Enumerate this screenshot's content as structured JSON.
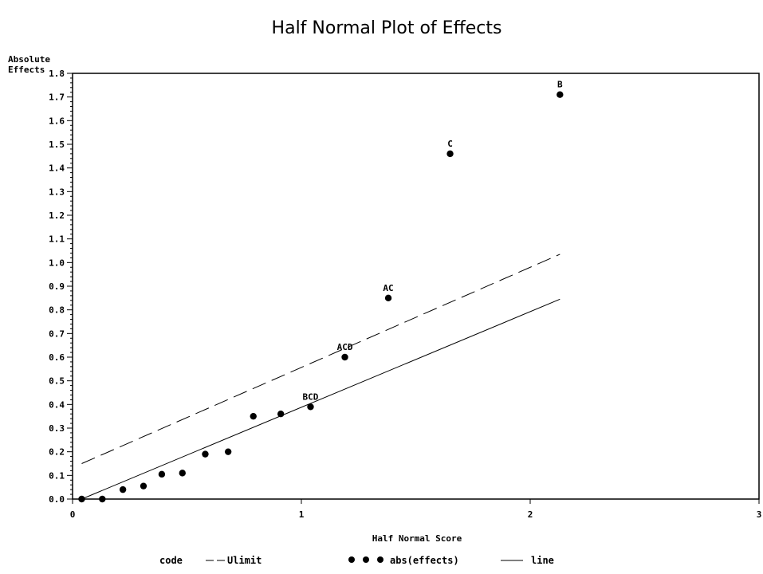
{
  "chart_data": {
    "type": "scatter",
    "title": "Half Normal Plot of Effects",
    "xlabel": "Half Normal Score",
    "ylabel_line1": "Absolute",
    "ylabel_line2": "Effects",
    "xlim": [
      0,
      3
    ],
    "ylim": [
      0,
      1.8
    ],
    "x_ticks": [
      {
        "value": 0,
        "label": "0"
      },
      {
        "value": 1,
        "label": "1"
      },
      {
        "value": 2,
        "label": "2"
      },
      {
        "value": 3,
        "label": "3"
      }
    ],
    "y_ticks": [
      {
        "value": 0.0,
        "label": "0.0"
      },
      {
        "value": 0.1,
        "label": "0.1"
      },
      {
        "value": 0.2,
        "label": "0.2"
      },
      {
        "value": 0.3,
        "label": "0.3"
      },
      {
        "value": 0.4,
        "label": "0.4"
      },
      {
        "value": 0.5,
        "label": "0.5"
      },
      {
        "value": 0.6,
        "label": "0.6"
      },
      {
        "value": 0.7,
        "label": "0.7"
      },
      {
        "value": 0.8,
        "label": "0.8"
      },
      {
        "value": 0.9,
        "label": "0.9"
      },
      {
        "value": 1.0,
        "label": "1.0"
      },
      {
        "value": 1.1,
        "label": "1.1"
      },
      {
        "value": 1.2,
        "label": "1.2"
      },
      {
        "value": 1.3,
        "label": "1.3"
      },
      {
        "value": 1.4,
        "label": "1.4"
      },
      {
        "value": 1.5,
        "label": "1.5"
      },
      {
        "value": 1.6,
        "label": "1.6"
      },
      {
        "value": 1.7,
        "label": "1.7"
      },
      {
        "value": 1.8,
        "label": "1.8"
      }
    ],
    "grid": false,
    "legend_placement": "bottom",
    "series": [
      {
        "name": "Ulimit",
        "kind": "line",
        "style": "dashed",
        "x": [
          0.04,
          2.13
        ],
        "y": [
          0.15,
          1.035
        ]
      },
      {
        "name": "abs(effects)",
        "kind": "scatter",
        "points": [
          {
            "x": 0.04,
            "y": 0.0,
            "label": ""
          },
          {
            "x": 0.13,
            "y": 0.0,
            "label": ""
          },
          {
            "x": 0.22,
            "y": 0.04,
            "label": ""
          },
          {
            "x": 0.31,
            "y": 0.055,
            "label": ""
          },
          {
            "x": 0.39,
            "y": 0.105,
            "label": ""
          },
          {
            "x": 0.48,
            "y": 0.11,
            "label": ""
          },
          {
            "x": 0.58,
            "y": 0.19,
            "label": ""
          },
          {
            "x": 0.68,
            "y": 0.2,
            "label": ""
          },
          {
            "x": 0.79,
            "y": 0.35,
            "label": ""
          },
          {
            "x": 0.91,
            "y": 0.36,
            "label": ""
          },
          {
            "x": 1.04,
            "y": 0.39,
            "label": "BCD"
          },
          {
            "x": 1.19,
            "y": 0.6,
            "label": "ACD"
          },
          {
            "x": 1.38,
            "y": 0.85,
            "label": "AC"
          },
          {
            "x": 1.65,
            "y": 1.46,
            "label": "C"
          },
          {
            "x": 2.13,
            "y": 1.71,
            "label": "B"
          }
        ]
      },
      {
        "name": "line",
        "kind": "line",
        "style": "solid",
        "x": [
          0.04,
          2.13
        ],
        "y": [
          0.0,
          0.845
        ]
      }
    ],
    "legend": {
      "heading": "code"
    }
  }
}
